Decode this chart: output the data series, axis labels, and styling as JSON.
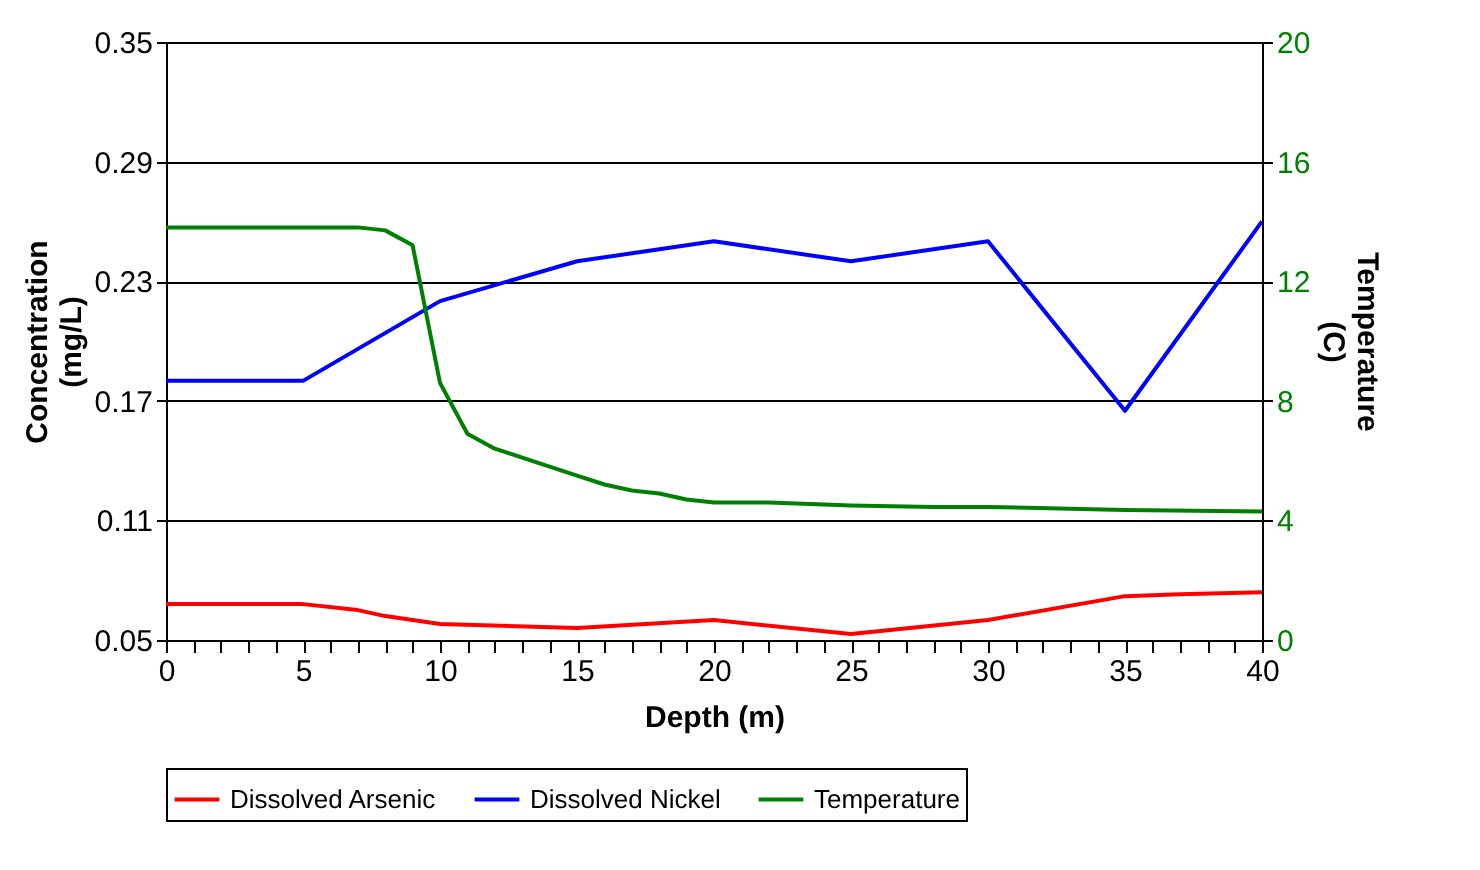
{
  "chart_data": {
    "type": "line",
    "xlabel": "Depth (m)",
    "ylabel": "Concentration (mg/L)",
    "y2label": "Temperature (C)",
    "xlim": [
      0,
      40
    ],
    "xticks": [
      0,
      {
        "value": 1,
        "label": null
      },
      {
        "value": 2,
        "label": null
      },
      {
        "value": 3,
        "label": null
      },
      {
        "value": 4,
        "label": null
      },
      5,
      {
        "value": 6,
        "label": null
      },
      {
        "value": 7,
        "label": null
      },
      {
        "value": 8,
        "label": null
      },
      {
        "value": 9,
        "label": null
      },
      10,
      {
        "value": 11,
        "label": null
      },
      {
        "value": 12,
        "label": null
      },
      {
        "value": 13,
        "label": null
      },
      {
        "value": 14,
        "label": null
      },
      15,
      {
        "value": 16,
        "label": null
      },
      {
        "value": 17,
        "label": null
      },
      {
        "value": 18,
        "label": null
      },
      {
        "value": 19,
        "label": null
      },
      20,
      {
        "value": 21,
        "label": null
      },
      {
        "value": 22,
        "label": null
      },
      {
        "value": 23,
        "label": null
      },
      {
        "value": 24,
        "label": null
      },
      25,
      {
        "value": 26,
        "label": null
      },
      {
        "value": 27,
        "label": null
      },
      {
        "value": 28,
        "label": null
      },
      {
        "value": 29,
        "label": null
      },
      30,
      {
        "value": 31,
        "label": null
      },
      {
        "value": 32,
        "label": null
      },
      {
        "value": 33,
        "label": null
      },
      {
        "value": 34,
        "label": null
      },
      35,
      {
        "value": 36,
        "label": null
      },
      {
        "value": 37,
        "label": null
      },
      {
        "value": 38,
        "label": null
      },
      {
        "value": 39,
        "label": null
      },
      40
    ],
    "ylim": [
      0.05,
      0.35
    ],
    "yticks": [
      0.05,
      0.11,
      0.17,
      0.23,
      0.29,
      0.35
    ],
    "y2lim": [
      0,
      20
    ],
    "y2ticks": [
      0,
      4,
      8,
      12,
      16,
      20
    ],
    "grid": "y",
    "legend": "bottom",
    "marker": "none",
    "line_style": "solid",
    "series": [
      {
        "name": "Dissolved Arsenic",
        "color": "#ff0000",
        "x": [
          0,
          5,
          7,
          8,
          10,
          15,
          20,
          25,
          30,
          35,
          37,
          40
        ],
        "values": [
          0.068,
          0.068,
          0.065,
          0.062,
          0.058,
          0.056,
          0.06,
          0.053,
          0.06,
          0.072,
          0.073,
          0.074
        ]
      },
      {
        "name": "Dissolved Nickel",
        "color": "#0000ff",
        "x": [
          0,
          5,
          10,
          15,
          20,
          25,
          30,
          35,
          40
        ],
        "values": [
          0.18,
          0.18,
          0.22,
          0.24,
          0.25,
          0.24,
          0.25,
          0.165,
          0.26
        ]
      },
      {
        "name": "Temperature",
        "color": "#008000",
        "axis": "y2",
        "x": [
          0,
          5,
          6,
          7,
          8,
          9,
          10,
          11,
          12,
          13,
          14,
          15,
          16,
          17,
          18,
          19,
          20,
          22,
          25,
          28,
          30,
          35,
          40
        ],
        "values": [
          13.8,
          13.8,
          13.8,
          13.8,
          13.7,
          13.2,
          8.6,
          6.9,
          6.4,
          6.1,
          5.8,
          5.5,
          5.2,
          5.0,
          4.9,
          4.7,
          4.6,
          4.6,
          4.5,
          4.45,
          4.45,
          4.35,
          4.3
        ]
      }
    ]
  }
}
